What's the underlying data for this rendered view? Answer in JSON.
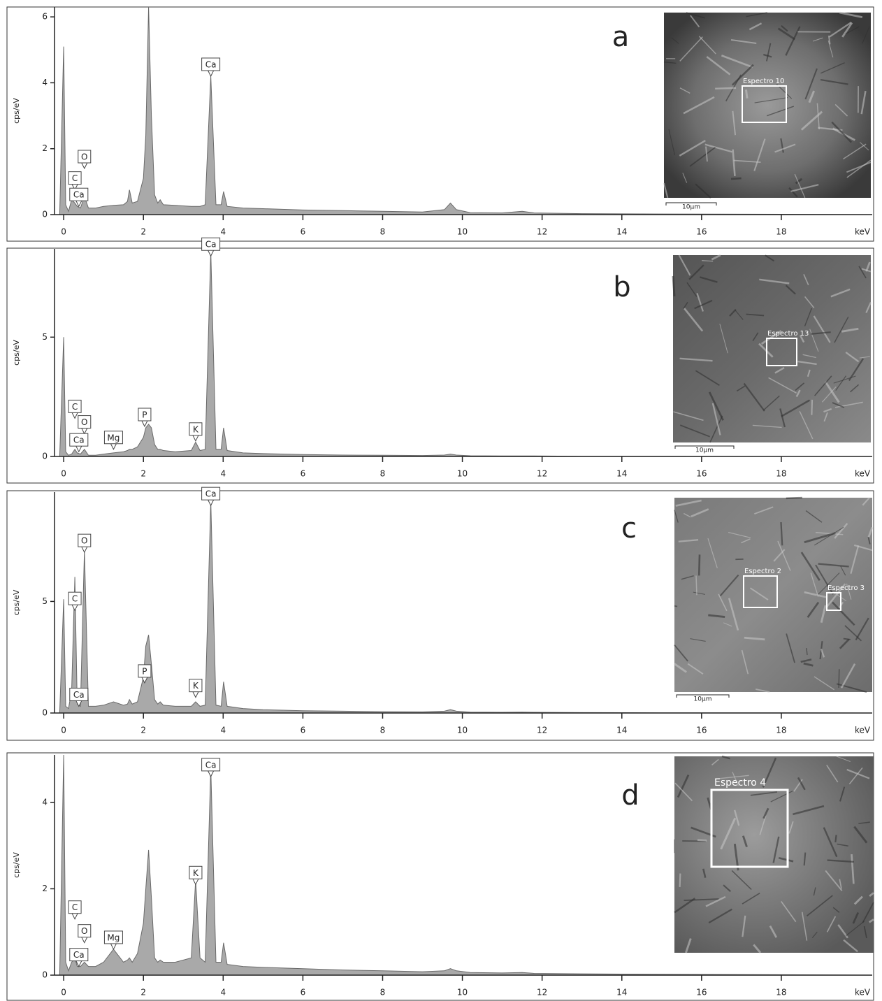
{
  "chart_data": [
    {
      "type": "area",
      "panel_label": "a",
      "ylabel": "cps/eV",
      "xlabel": "keV",
      "color": "#a9a9a9",
      "x": [
        -0.1,
        0,
        0.05,
        0.12,
        0.2,
        0.28,
        0.34,
        0.42,
        0.52,
        0.62,
        0.8,
        1.0,
        1.25,
        1.5,
        1.6,
        1.65,
        1.72,
        1.85,
        2.0,
        2.06,
        2.13,
        2.2,
        2.28,
        2.36,
        2.42,
        2.5,
        2.8,
        3.2,
        3.31,
        3.42,
        3.55,
        3.69,
        3.82,
        3.95,
        4.01,
        4.1,
        4.5,
        5,
        6,
        7,
        8,
        9,
        9.55,
        9.7,
        9.85,
        10.2,
        11,
        11.5,
        11.8,
        13,
        15,
        18,
        20.2
      ],
      "values": [
        0,
        5.1,
        0.3,
        0.1,
        0.45,
        0.35,
        0.25,
        0.2,
        0.55,
        0.2,
        0.2,
        0.25,
        0.28,
        0.3,
        0.4,
        0.75,
        0.35,
        0.4,
        1.1,
        2.4,
        6.3,
        3.0,
        0.6,
        0.35,
        0.45,
        0.3,
        0.28,
        0.25,
        0.25,
        0.25,
        0.3,
        4.2,
        0.3,
        0.3,
        0.7,
        0.25,
        0.2,
        0.18,
        0.14,
        0.12,
        0.1,
        0.08,
        0.15,
        0.35,
        0.15,
        0.06,
        0.05,
        0.1,
        0.05,
        0.03,
        0.02,
        0.01,
        0
      ],
      "xlim": [
        -0.23,
        20.28
      ],
      "ylim": [
        0,
        6.3
      ],
      "xticks": [
        0,
        2,
        4,
        6,
        8,
        10,
        12,
        14,
        16,
        18
      ],
      "yticks": [
        0,
        2,
        4,
        6
      ],
      "annotations": [
        {
          "text": "Ca",
          "x": 3.69,
          "y": 4.2
        },
        {
          "text": "O",
          "x": 0.52,
          "y": 1.4
        },
        {
          "text": "C",
          "x": 0.28,
          "y": 0.75
        },
        {
          "text": "Ca",
          "x": 0.38,
          "y": 0.25
        }
      ],
      "inset": {
        "regions": [
          "Espectro 10"
        ],
        "scale_bar": "10µm"
      }
    },
    {
      "type": "area",
      "panel_label": "b",
      "ylabel": "cps/eV",
      "xlabel": "keV",
      "color": "#a9a9a9",
      "x": [
        -0.1,
        0,
        0.05,
        0.12,
        0.2,
        0.28,
        0.34,
        0.42,
        0.52,
        0.62,
        0.8,
        1.0,
        1.25,
        1.5,
        1.6,
        1.65,
        1.72,
        1.85,
        2.0,
        2.06,
        2.13,
        2.2,
        2.28,
        2.36,
        2.42,
        2.5,
        2.8,
        3.2,
        3.31,
        3.42,
        3.55,
        3.69,
        3.82,
        3.95,
        4.01,
        4.1,
        4.5,
        5,
        6,
        7,
        8,
        9,
        9.55,
        9.7,
        9.85,
        10.2,
        11,
        11.5,
        11.8,
        13,
        15,
        18,
        20.2
      ],
      "values": [
        0,
        5.0,
        0.2,
        0.05,
        0.1,
        0.3,
        0.15,
        0.1,
        0.3,
        0.05,
        0.05,
        0.1,
        0.15,
        0.2,
        0.25,
        0.3,
        0.3,
        0.4,
        0.8,
        1.2,
        1.35,
        1.2,
        0.5,
        0.3,
        0.3,
        0.25,
        0.2,
        0.25,
        0.6,
        0.25,
        0.3,
        8.6,
        0.3,
        0.3,
        1.2,
        0.25,
        0.15,
        0.12,
        0.08,
        0.06,
        0.05,
        0.04,
        0.06,
        0.1,
        0.06,
        0.03,
        0.02,
        0.02,
        0.02,
        0.01,
        0.01,
        0,
        0
      ],
      "xlim": [
        -0.23,
        20.28
      ],
      "ylim": [
        0,
        8.7
      ],
      "xticks": [
        0,
        2,
        4,
        6,
        8,
        10,
        12,
        14,
        16,
        18
      ],
      "yticks": [
        0,
        5
      ],
      "annotations": [
        {
          "text": "Ca",
          "x": 3.69,
          "y": 8.4
        },
        {
          "text": "C",
          "x": 0.28,
          "y": 1.6
        },
        {
          "text": "O",
          "x": 0.52,
          "y": 0.95
        },
        {
          "text": "Ca",
          "x": 0.38,
          "y": 0.2
        },
        {
          "text": "Mg",
          "x": 1.25,
          "y": 0.3
        },
        {
          "text": "P",
          "x": 2.03,
          "y": 1.26
        },
        {
          "text": "K",
          "x": 3.31,
          "y": 0.65
        }
      ],
      "inset": {
        "regions": [
          "Espectro 13"
        ],
        "scale_bar": "10µm"
      }
    },
    {
      "type": "area",
      "panel_label": "c",
      "ylabel": "cps/eV",
      "xlabel": "keV",
      "color": "#a9a9a9",
      "x": [
        -0.1,
        0,
        0.05,
        0.12,
        0.2,
        0.28,
        0.34,
        0.42,
        0.52,
        0.62,
        0.8,
        1.0,
        1.25,
        1.5,
        1.6,
        1.65,
        1.72,
        1.85,
        2.0,
        2.06,
        2.13,
        2.2,
        2.28,
        2.36,
        2.42,
        2.5,
        2.8,
        3.2,
        3.31,
        3.42,
        3.55,
        3.69,
        3.82,
        3.95,
        4.01,
        4.1,
        4.5,
        5,
        6,
        7,
        8,
        9,
        9.55,
        9.7,
        9.85,
        10.2,
        11,
        11.5,
        11.8,
        13,
        15,
        18,
        20.2
      ],
      "values": [
        0,
        5.1,
        0.3,
        0.2,
        1.0,
        6.1,
        0.4,
        0.3,
        7.3,
        0.3,
        0.3,
        0.35,
        0.5,
        0.35,
        0.4,
        0.6,
        0.4,
        0.5,
        1.6,
        3.0,
        3.5,
        2.2,
        0.6,
        0.4,
        0.5,
        0.35,
        0.3,
        0.3,
        0.5,
        0.3,
        0.35,
        9.5,
        0.35,
        0.3,
        1.4,
        0.3,
        0.2,
        0.15,
        0.1,
        0.08,
        0.06,
        0.05,
        0.08,
        0.15,
        0.08,
        0.04,
        0.03,
        0.04,
        0.03,
        0.02,
        0.01,
        0.01,
        0
      ],
      "xlim": [
        -0.23,
        20.28
      ],
      "ylim": [
        0,
        9.9
      ],
      "xticks": [
        0,
        2,
        4,
        6,
        8,
        10,
        12,
        14,
        16,
        18
      ],
      "yticks": [
        0,
        5
      ],
      "annotations": [
        {
          "text": "Ca",
          "x": 3.69,
          "y": 9.3
        },
        {
          "text": "O",
          "x": 0.52,
          "y": 7.2
        },
        {
          "text": "C",
          "x": 0.28,
          "y": 4.6
        },
        {
          "text": "P",
          "x": 2.03,
          "y": 1.35
        },
        {
          "text": "K",
          "x": 3.31,
          "y": 0.7
        },
        {
          "text": "Ca",
          "x": 0.38,
          "y": 0.3
        }
      ],
      "inset": {
        "regions": [
          "Espectro 2",
          "Espectro 3"
        ],
        "scale_bar": "10µm"
      }
    },
    {
      "type": "area",
      "panel_label": "d",
      "ylabel": "cps/eV",
      "xlabel": "keV",
      "color": "#a9a9a9",
      "x": [
        -0.1,
        0,
        0.05,
        0.12,
        0.2,
        0.28,
        0.34,
        0.42,
        0.52,
        0.62,
        0.8,
        1.0,
        1.25,
        1.5,
        1.6,
        1.65,
        1.72,
        1.85,
        2.0,
        2.06,
        2.13,
        2.2,
        2.28,
        2.36,
        2.42,
        2.5,
        2.8,
        3.2,
        3.31,
        3.42,
        3.55,
        3.69,
        3.82,
        3.95,
        4.01,
        4.1,
        4.5,
        5,
        6,
        7,
        8,
        9,
        9.55,
        9.7,
        9.85,
        10.2,
        11,
        11.5,
        11.8,
        13,
        15,
        18,
        20.2
      ],
      "values": [
        0,
        5.1,
        0.3,
        0.1,
        0.3,
        0.4,
        0.2,
        0.2,
        0.3,
        0.2,
        0.2,
        0.3,
        0.6,
        0.3,
        0.35,
        0.4,
        0.3,
        0.5,
        1.2,
        2.0,
        2.9,
        1.8,
        0.4,
        0.3,
        0.35,
        0.3,
        0.3,
        0.4,
        2.2,
        0.4,
        0.3,
        4.8,
        0.3,
        0.3,
        0.75,
        0.25,
        0.2,
        0.18,
        0.15,
        0.12,
        0.1,
        0.08,
        0.1,
        0.15,
        0.1,
        0.06,
        0.05,
        0.06,
        0.04,
        0.03,
        0.02,
        0.01,
        0
      ],
      "xlim": [
        -0.23,
        20.28
      ],
      "ylim": [
        0,
        5.1
      ],
      "xticks": [
        0,
        2,
        4,
        6,
        8,
        10,
        12,
        14,
        16,
        18
      ],
      "yticks": [
        0,
        2,
        4
      ],
      "annotations": [
        {
          "text": "Ca",
          "x": 3.69,
          "y": 4.6
        },
        {
          "text": "K",
          "x": 3.31,
          "y": 2.1
        },
        {
          "text": "C",
          "x": 0.28,
          "y": 1.3
        },
        {
          "text": "O",
          "x": 0.52,
          "y": 0.75
        },
        {
          "text": "Mg",
          "x": 1.25,
          "y": 0.6
        },
        {
          "text": "Ca",
          "x": 0.38,
          "y": 0.2
        }
      ],
      "inset": {
        "regions": [
          "Espectro 4"
        ]
      }
    }
  ]
}
